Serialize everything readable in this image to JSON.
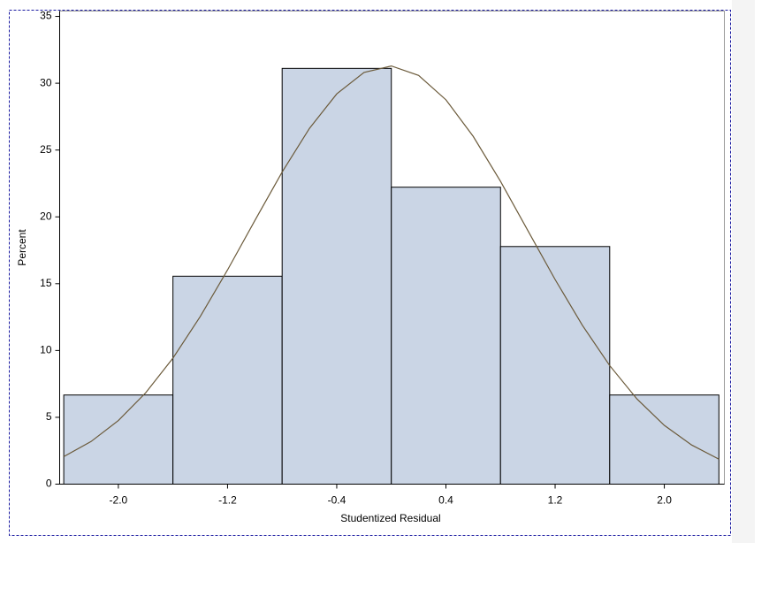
{
  "chart_data": {
    "type": "histogram",
    "xlabel": "Studentized Residual",
    "ylabel": "Percent",
    "bins": [
      -2.4,
      -1.6,
      -0.8,
      0,
      0.8,
      1.6,
      2.4
    ],
    "values": [
      6.67,
      15.56,
      31.11,
      22.22,
      17.78,
      6.67
    ],
    "color": "#cad5e5",
    "edgecolor": "#000000",
    "xlim": [
      -2.43,
      2.44
    ],
    "ylim": [
      0,
      35.4
    ],
    "xticks": [
      {
        "value": -2,
        "label": "-2.0"
      },
      -1.2,
      -0.4,
      0.4,
      1.2,
      {
        "value": 2,
        "label": "2.0"
      }
    ],
    "yticks": [
      0,
      5,
      10,
      15,
      20,
      25,
      30,
      35
    ],
    "grid": false,
    "curve": {
      "color": "#6b5a3a",
      "x": [
        -2.4,
        -2.2,
        -2.0,
        -1.8,
        -1.6,
        -1.4,
        -1.2,
        -1.0,
        -0.8,
        -0.6,
        -0.4,
        -0.2,
        0,
        0.2,
        0.4,
        0.6,
        0.8,
        1.0,
        1.2,
        1.4,
        1.6,
        1.8,
        2.0,
        2.2,
        2.4
      ],
      "values": [
        2.06,
        3.19,
        4.76,
        6.83,
        9.43,
        12.54,
        16.03,
        19.72,
        23.35,
        26.62,
        29.2,
        30.81,
        31.29,
        30.58,
        28.76,
        26.02,
        22.66,
        18.98,
        15.31,
        11.88,
        8.87,
        6.37,
        4.4,
        2.93,
        1.87
      ]
    }
  }
}
